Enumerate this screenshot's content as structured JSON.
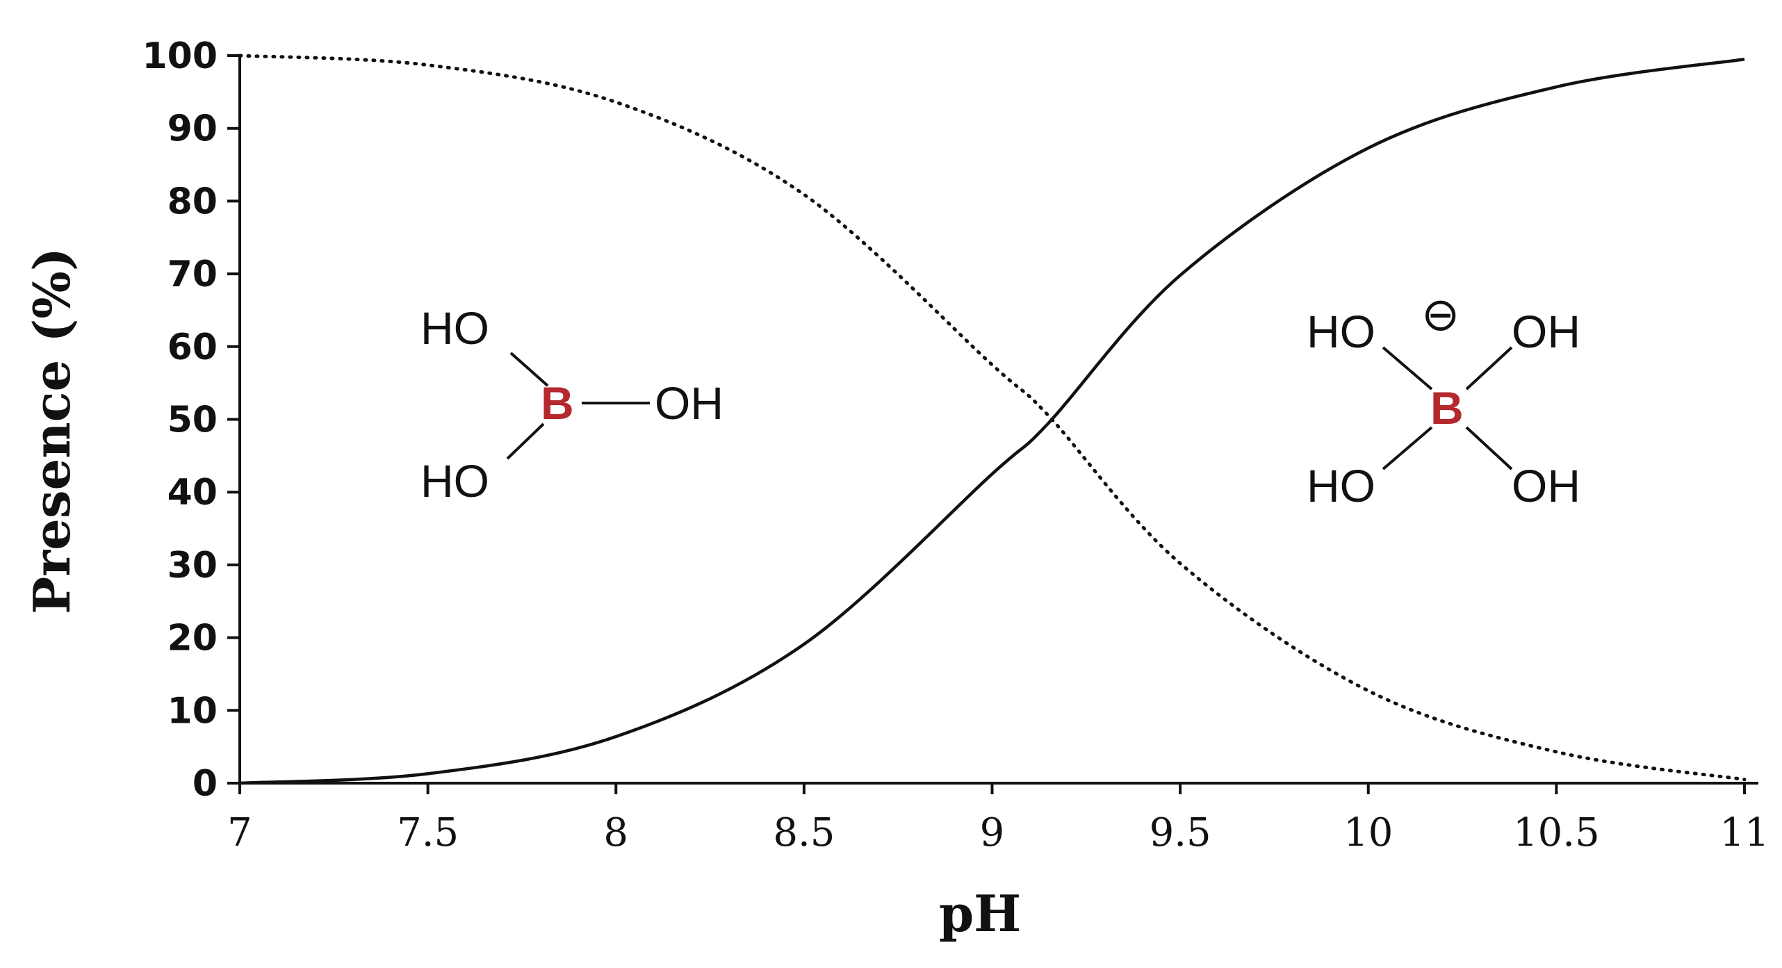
{
  "chart_data": {
    "type": "line",
    "xlabel": "pH",
    "ylabel": "Presence (%)",
    "xlim": [
      7,
      11
    ],
    "ylim": [
      0,
      100
    ],
    "x_ticks": [
      "7",
      "7.5",
      "8",
      "8.5",
      "9",
      "9.5",
      "10",
      "10.5",
      "11"
    ],
    "y_ticks": [
      "0",
      "10",
      "20",
      "30",
      "40",
      "50",
      "60",
      "70",
      "80",
      "90",
      "100"
    ],
    "grid": false,
    "series": [
      {
        "style": "dotted",
        "x": [
          7.0,
          7.5,
          8.0,
          8.5,
          9.0,
          9.15,
          9.5,
          10.0,
          10.5,
          11.0
        ],
        "y": [
          100,
          98.7,
          93.6,
          80.9,
          57.5,
          50.5,
          30.2,
          12.7,
          4.3,
          0.5
        ]
      },
      {
        "style": "solid",
        "x": [
          7.0,
          7.5,
          8.0,
          8.5,
          9.0,
          9.15,
          9.5,
          10.0,
          10.5,
          11.0
        ],
        "y": [
          0,
          1.3,
          6.4,
          19.1,
          42.5,
          49.5,
          69.8,
          87.3,
          95.7,
          99.5
        ]
      }
    ],
    "annotations": {
      "boric_acid": {
        "ho_top": "HO",
        "b": "B",
        "oh_right": "OH",
        "ho_bottom": "HO"
      },
      "borate": {
        "charge": "⊖",
        "ho_top": "HO",
        "oh_top": "OH",
        "b": "B",
        "ho_bottom": "HO",
        "oh_bottom": "OH"
      }
    },
    "colors": {
      "line": "#111111",
      "boron": "#b5282e"
    }
  }
}
